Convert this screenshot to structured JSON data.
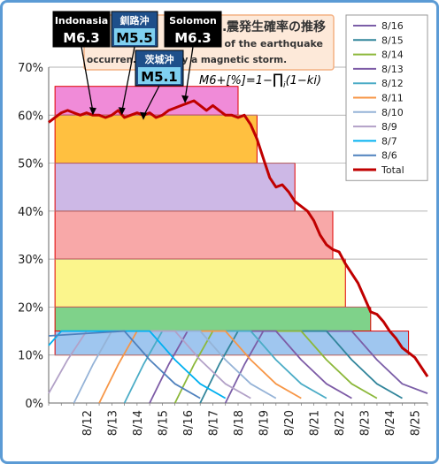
{
  "chart_data": {
    "type": "line",
    "title": "…震発生確率の推移",
    "subtitle_lines": [
      "… of the earthquake",
      "occurren… bility by a magnetic storm."
    ],
    "formula": {
      "lhs": "M6+[%]=1−",
      "prod": "∏",
      "sub": "i",
      "rhs": "(1−ki)"
    },
    "ylim": [
      0,
      70
    ],
    "yticks": [
      0,
      10,
      20,
      30,
      40,
      50,
      60,
      70
    ],
    "ytick_labels": [
      "0%",
      "10%",
      "20%",
      "30%",
      "40%",
      "50%",
      "60%",
      "70%"
    ],
    "xlim": [
      0,
      30
    ],
    "xticks": [
      {
        "x": 3,
        "label": "8/12"
      },
      {
        "x": 5,
        "label": "8/13"
      },
      {
        "x": 7,
        "label": "8/14"
      },
      {
        "x": 9,
        "label": "8/15"
      },
      {
        "x": 11,
        "label": "8/16"
      },
      {
        "x": 13,
        "label": "8/17"
      },
      {
        "x": 15,
        "label": "8/18"
      },
      {
        "x": 17,
        "label": "8/19"
      },
      {
        "x": 19,
        "label": "8/20"
      },
      {
        "x": 21,
        "label": "8/21"
      },
      {
        "x": 23,
        "label": "8/22"
      },
      {
        "x": 25,
        "label": "8/23"
      },
      {
        "x": 27,
        "label": "8/24"
      },
      {
        "x": 29,
        "label": "8/25"
      }
    ],
    "bands": [
      {
        "y0": 60,
        "y1": 66,
        "x0": 0.5,
        "x1": 15,
        "color": "#f08bd8"
      },
      {
        "y0": 50,
        "y1": 60,
        "x0": 0.5,
        "x1": 16.5,
        "color": "#ffc040"
      },
      {
        "y0": 40,
        "y1": 50,
        "x0": 0.5,
        "x1": 19.5,
        "color": "#cdb8e6"
      },
      {
        "y0": 30,
        "y1": 40,
        "x0": 0.5,
        "x1": 22.5,
        "color": "#f8a8a8"
      },
      {
        "y0": 20,
        "y1": 30,
        "x0": 0.5,
        "x1": 23.5,
        "color": "#fbf58c"
      },
      {
        "y0": 15,
        "y1": 20,
        "x0": 0.5,
        "x1": 25.5,
        "color": "#7fd28a"
      },
      {
        "y0": 10,
        "y1": 15,
        "x0": 0.5,
        "x1": 28.5,
        "color": "#9fc6ef"
      }
    ],
    "series": [
      {
        "name": "8/16",
        "color": "#7b5ea7",
        "points": [
          [
            14,
            0
          ],
          [
            15.5,
            8
          ],
          [
            17,
            15
          ],
          [
            24,
            15
          ],
          [
            26,
            9
          ],
          [
            28,
            4
          ],
          [
            30,
            2
          ]
        ]
      },
      {
        "name": "8/15",
        "color": "#31859b",
        "points": [
          [
            12,
            0
          ],
          [
            13.5,
            8
          ],
          [
            15,
            15
          ],
          [
            22,
            15
          ],
          [
            24,
            9
          ],
          [
            26,
            4
          ],
          [
            28,
            1
          ]
        ]
      },
      {
        "name": "8/14",
        "color": "#8cb83a",
        "points": [
          [
            10,
            0
          ],
          [
            11.5,
            8
          ],
          [
            13,
            15
          ],
          [
            20,
            15
          ],
          [
            22,
            9
          ],
          [
            24,
            4
          ],
          [
            26,
            1
          ]
        ]
      },
      {
        "name": "8/13",
        "color": "#7d5ba6",
        "points": [
          [
            8,
            0
          ],
          [
            9.5,
            8
          ],
          [
            11,
            15
          ],
          [
            18,
            15
          ],
          [
            20,
            9
          ],
          [
            22,
            4
          ],
          [
            24,
            1
          ]
        ]
      },
      {
        "name": "8/12",
        "color": "#4bacc6",
        "points": [
          [
            6,
            0
          ],
          [
            7.5,
            8
          ],
          [
            9,
            15
          ],
          [
            16,
            15
          ],
          [
            18,
            9
          ],
          [
            20,
            4
          ],
          [
            22,
            1
          ]
        ]
      },
      {
        "name": "8/11",
        "color": "#f79646",
        "points": [
          [
            4,
            0
          ],
          [
            5.5,
            8
          ],
          [
            7,
            15
          ],
          [
            14,
            15
          ],
          [
            16,
            9
          ],
          [
            18,
            4
          ],
          [
            20,
            1
          ]
        ]
      },
      {
        "name": "8/10",
        "color": "#95b3d7",
        "points": [
          [
            2,
            0
          ],
          [
            3.5,
            8
          ],
          [
            5,
            15
          ],
          [
            12,
            15
          ],
          [
            14,
            9
          ],
          [
            16,
            4
          ],
          [
            18,
            1
          ]
        ]
      },
      {
        "name": "8/9",
        "color": "#b2a1c7",
        "points": [
          [
            0,
            2
          ],
          [
            1.5,
            9
          ],
          [
            3,
            15
          ],
          [
            10,
            15
          ],
          [
            12,
            9
          ],
          [
            14,
            4
          ],
          [
            16,
            1
          ]
        ]
      },
      {
        "name": "8/7",
        "color": "#00b0f0",
        "points": [
          [
            0,
            12
          ],
          [
            1,
            15
          ],
          [
            8,
            15
          ],
          [
            10,
            9
          ],
          [
            12,
            4
          ],
          [
            14,
            1
          ]
        ]
      },
      {
        "name": "8/6",
        "color": "#4f81bd",
        "points": [
          [
            0,
            14
          ],
          [
            6,
            15
          ],
          [
            8,
            9
          ],
          [
            10,
            4
          ],
          [
            12,
            1
          ]
        ]
      },
      {
        "name": "Total",
        "color": "#c00000",
        "width": 3,
        "points": [
          [
            0,
            58.5
          ],
          [
            0.5,
            59.5
          ],
          [
            1,
            60.5
          ],
          [
            1.5,
            61
          ],
          [
            2,
            60.5
          ],
          [
            2.5,
            60
          ],
          [
            3,
            60.5
          ],
          [
            3.5,
            60
          ],
          [
            4,
            60
          ],
          [
            4.5,
            59.5
          ],
          [
            5,
            60
          ],
          [
            5.5,
            61
          ],
          [
            6,
            59.5
          ],
          [
            6.5,
            60
          ],
          [
            7,
            60.5
          ],
          [
            7.5,
            60
          ],
          [
            8,
            60.5
          ],
          [
            8.5,
            59.5
          ],
          [
            9,
            60
          ],
          [
            9.5,
            61
          ],
          [
            10,
            61.5
          ],
          [
            10.5,
            62
          ],
          [
            11,
            62.5
          ],
          [
            11.5,
            63
          ],
          [
            12,
            62
          ],
          [
            12.5,
            61
          ],
          [
            13,
            62
          ],
          [
            13.5,
            61
          ],
          [
            14,
            60
          ],
          [
            14.5,
            60
          ],
          [
            15,
            59.5
          ],
          [
            15.5,
            60
          ],
          [
            16,
            58
          ],
          [
            16.5,
            55
          ],
          [
            17,
            51
          ],
          [
            17.5,
            47
          ],
          [
            18,
            45
          ],
          [
            18.5,
            45.5
          ],
          [
            19,
            44
          ],
          [
            19.5,
            42
          ],
          [
            20,
            41
          ],
          [
            20.5,
            40
          ],
          [
            21,
            38
          ],
          [
            21.5,
            35
          ],
          [
            22,
            33
          ],
          [
            22.5,
            32
          ],
          [
            23,
            31.5
          ],
          [
            23.5,
            29
          ],
          [
            24,
            27
          ],
          [
            24.5,
            25
          ],
          [
            25,
            22
          ],
          [
            25.5,
            19
          ],
          [
            26,
            18.5
          ],
          [
            26.5,
            17
          ],
          [
            27,
            15
          ],
          [
            27.5,
            13.5
          ],
          [
            28,
            11.5
          ],
          [
            28.5,
            10.5
          ],
          [
            29,
            9.5
          ],
          [
            29.5,
            7.5
          ],
          [
            30,
            5.5
          ]
        ]
      }
    ],
    "legend": {
      "placement": "top-right",
      "entries": [
        "8/16",
        "8/15",
        "8/14",
        "8/13",
        "8/12",
        "8/11",
        "8/10",
        "8/9",
        "8/7",
        "8/6",
        "Total"
      ]
    },
    "annotations": [
      {
        "place": "Indonasia",
        "mag": "M6.3",
        "x": 3.5,
        "y": 60
      },
      {
        "place": "釧路沖",
        "mag": "M5.5",
        "x": 5.8,
        "y": 60
      },
      {
        "place": "茨城沖",
        "mag": "M5.1",
        "x": 7.5,
        "y": 59
      },
      {
        "place": "Solomon",
        "mag": "M6.3",
        "x": 10.8,
        "y": 62.5
      }
    ]
  }
}
